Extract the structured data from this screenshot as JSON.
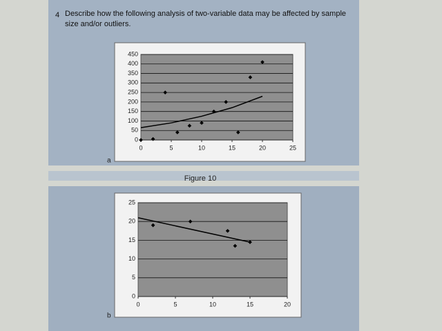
{
  "question_number": "4",
  "question": "Describe how the following analysis of two-variable data may be affected by sample size and/or outliers.",
  "figure_caption": "Figure 10",
  "chart_data": [
    {
      "type": "scatter",
      "label": "a",
      "xlim": [
        0,
        25
      ],
      "xticks": [
        0,
        5,
        10,
        15,
        20,
        25
      ],
      "ylim": [
        0,
        450
      ],
      "yticks": [
        0,
        50,
        100,
        150,
        200,
        250,
        300,
        350,
        400,
        450
      ],
      "grid": true,
      "series": [
        {
          "color": "#000000",
          "x": [
            0,
            2,
            4,
            6,
            8,
            10,
            12,
            14,
            16,
            18,
            20
          ],
          "values": [
            0,
            5,
            250,
            40,
            75,
            90,
            150,
            200,
            40,
            330,
            410
          ]
        }
      ],
      "trendline": {
        "color": "#000000",
        "x": [
          0,
          5,
          10,
          15,
          20
        ],
        "values": [
          65,
          90,
          125,
          170,
          230
        ]
      }
    },
    {
      "type": "scatter",
      "label": "b",
      "xlim": [
        0,
        20
      ],
      "xticks": [
        0,
        5,
        10,
        15,
        20
      ],
      "ylim": [
        0,
        25
      ],
      "yticks": [
        0,
        5,
        10,
        15,
        20,
        25
      ],
      "grid": true,
      "series": [
        {
          "color": "#000000",
          "x": [
            2,
            7,
            12,
            13,
            15
          ],
          "values": [
            19,
            20,
            17.5,
            13.5,
            14.5
          ]
        }
      ],
      "trendline": {
        "color": "#000000",
        "x": [
          0,
          15
        ],
        "values": [
          21,
          14.5
        ]
      }
    }
  ]
}
